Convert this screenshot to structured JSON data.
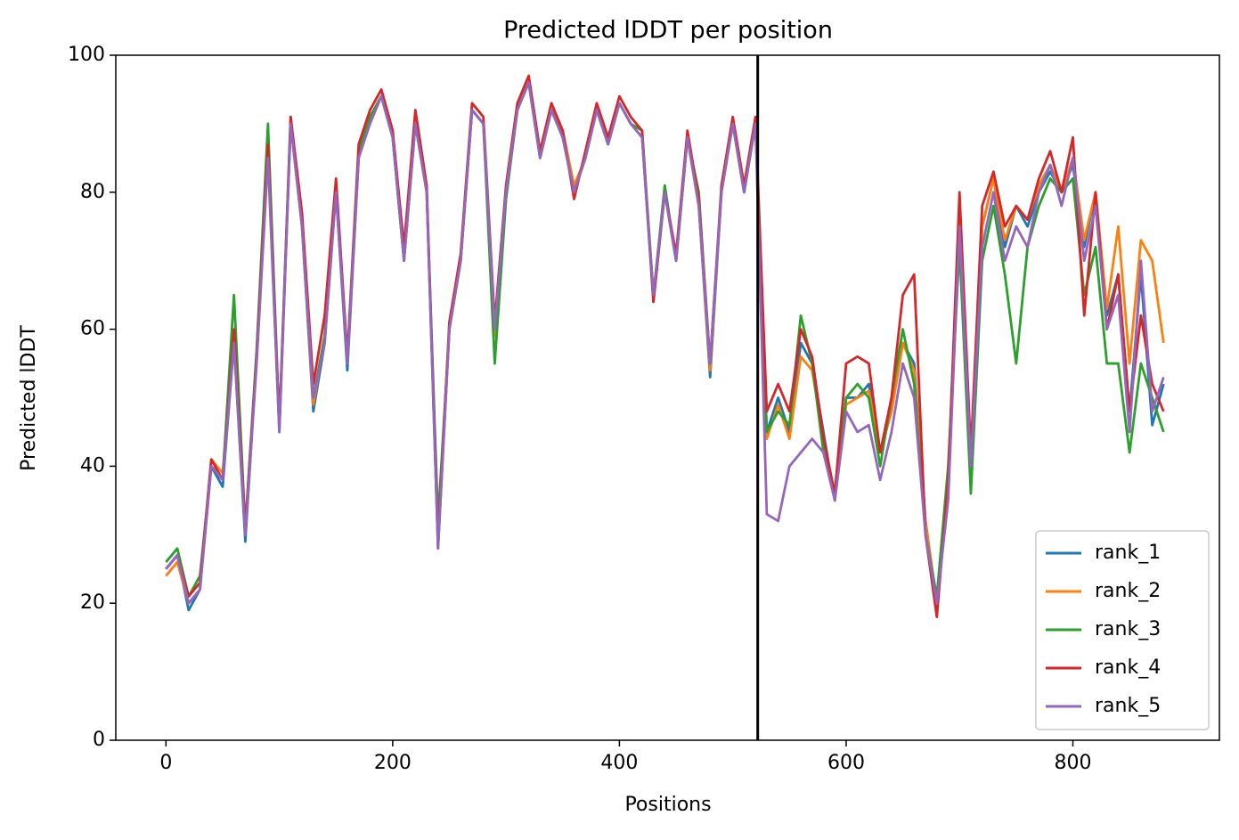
{
  "chart_data": {
    "type": "line",
    "title": "Predicted lDDT per position",
    "xlabel": "Positions",
    "ylabel": "Predicted lDDT",
    "x": [
      0,
      10,
      20,
      30,
      40,
      50,
      60,
      70,
      80,
      90,
      100,
      110,
      120,
      130,
      140,
      150,
      160,
      170,
      180,
      190,
      200,
      210,
      220,
      230,
      240,
      250,
      260,
      270,
      280,
      290,
      300,
      310,
      320,
      330,
      340,
      350,
      360,
      370,
      380,
      390,
      400,
      410,
      420,
      430,
      440,
      450,
      460,
      470,
      480,
      490,
      500,
      510,
      520,
      530,
      540,
      550,
      560,
      570,
      580,
      590,
      600,
      610,
      620,
      630,
      640,
      650,
      660,
      670,
      680,
      690,
      700,
      710,
      720,
      730,
      740,
      750,
      760,
      770,
      780,
      790,
      800,
      810,
      820,
      830,
      840,
      850,
      860,
      870,
      880
    ],
    "series": [
      {
        "name": "rank_1",
        "color": "#1f77b4",
        "values": [
          25,
          27,
          19,
          22,
          40,
          37,
          58,
          29,
          56,
          86,
          45,
          90,
          75,
          48,
          58,
          80,
          54,
          85,
          91,
          94,
          88,
          70,
          90,
          80,
          28,
          60,
          70,
          92,
          90,
          60,
          80,
          92,
          96,
          85,
          92,
          88,
          80,
          85,
          92,
          87,
          93,
          90,
          88,
          64,
          80,
          70,
          88,
          78,
          53,
          80,
          90,
          80,
          90,
          45,
          50,
          45,
          58,
          55,
          45,
          35,
          50,
          50,
          52,
          42,
          48,
          58,
          55,
          32,
          20,
          38,
          78,
          38,
          75,
          82,
          72,
          78,
          75,
          80,
          83,
          80,
          84,
          72,
          80,
          62,
          68,
          48,
          68,
          46,
          52
        ]
      },
      {
        "name": "rank_2",
        "color": "#ff7f0e",
        "values": [
          24,
          26,
          20,
          22,
          41,
          39,
          59,
          30,
          56,
          86,
          46,
          90,
          75,
          49,
          59,
          81,
          55,
          86,
          91,
          94,
          88,
          71,
          90,
          80,
          29,
          61,
          71,
          92,
          90,
          59,
          80,
          92,
          96,
          85,
          92,
          89,
          81,
          85,
          92,
          87,
          93,
          90,
          88,
          65,
          80,
          70,
          88,
          78,
          54,
          80,
          90,
          80,
          90,
          44,
          49,
          44,
          56,
          54,
          44,
          35,
          49,
          50,
          51,
          42,
          48,
          58,
          54,
          32,
          20,
          38,
          78,
          38,
          75,
          82,
          73,
          78,
          76,
          81,
          84,
          80,
          85,
          73,
          80,
          63,
          75,
          55,
          73,
          70,
          58
        ]
      },
      {
        "name": "rank_3",
        "color": "#2ca02c",
        "values": [
          26,
          28,
          21,
          24,
          40,
          38,
          65,
          31,
          57,
          90,
          46,
          91,
          76,
          50,
          59,
          81,
          55,
          86,
          91,
          94,
          88,
          70,
          90,
          80,
          32,
          60,
          70,
          92,
          90,
          55,
          79,
          92,
          96,
          85,
          92,
          88,
          80,
          85,
          92,
          87,
          93,
          90,
          89,
          65,
          81,
          70,
          88,
          80,
          55,
          80,
          90,
          80,
          90,
          45,
          48,
          46,
          62,
          55,
          42,
          36,
          50,
          52,
          50,
          40,
          50,
          60,
          52,
          30,
          21,
          40,
          72,
          36,
          70,
          78,
          68,
          55,
          72,
          78,
          82,
          80,
          82,
          65,
          72,
          55,
          55,
          42,
          55,
          50,
          45
        ]
      },
      {
        "name": "rank_4",
        "color": "#d62728",
        "values": [
          25,
          27,
          21,
          23,
          41,
          38,
          60,
          31,
          56,
          87,
          46,
          91,
          77,
          52,
          62,
          82,
          56,
          87,
          92,
          95,
          89,
          72,
          92,
          81,
          29,
          61,
          71,
          93,
          91,
          61,
          81,
          93,
          97,
          86,
          93,
          89,
          79,
          86,
          93,
          88,
          94,
          91,
          89,
          64,
          80,
          71,
          89,
          79,
          55,
          81,
          91,
          81,
          91,
          48,
          52,
          48,
          60,
          56,
          44,
          36,
          55,
          56,
          55,
          42,
          50,
          65,
          68,
          30,
          18,
          38,
          80,
          42,
          78,
          83,
          75,
          78,
          76,
          82,
          86,
          80,
          88,
          62,
          80,
          60,
          68,
          48,
          62,
          52,
          48
        ]
      },
      {
        "name": "rank_5",
        "color": "#9467bd",
        "values": [
          25,
          27,
          20,
          22,
          40,
          38,
          58,
          30,
          55,
          85,
          45,
          90,
          75,
          50,
          58,
          80,
          55,
          85,
          90,
          94,
          88,
          70,
          90,
          80,
          28,
          60,
          70,
          92,
          90,
          60,
          80,
          92,
          96,
          85,
          92,
          88,
          80,
          85,
          92,
          87,
          93,
          90,
          88,
          65,
          80,
          70,
          88,
          78,
          55,
          80,
          90,
          80,
          90,
          33,
          32,
          40,
          42,
          44,
          42,
          35,
          48,
          45,
          46,
          38,
          45,
          55,
          50,
          30,
          20,
          35,
          75,
          40,
          72,
          80,
          70,
          75,
          72,
          80,
          84,
          78,
          85,
          70,
          78,
          60,
          65,
          45,
          70,
          48,
          53
        ]
      }
    ],
    "vline": 522,
    "xlim": [
      -44.25,
      929.25
    ],
    "xticks": [
      0,
      200,
      400,
      600,
      800
    ],
    "ylim": [
      0,
      100
    ],
    "yticks": [
      0,
      20,
      40,
      60,
      80,
      100
    ],
    "legend": "lower right"
  }
}
